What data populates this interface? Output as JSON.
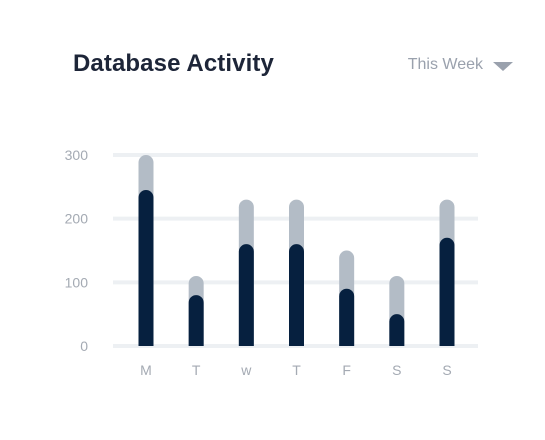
{
  "header": {
    "title": "Database Activity",
    "period_label": "This Week",
    "period_icon": "caret-down-icon"
  },
  "colors": {
    "primary": "#06203f",
    "secondary": "#b3bcc6",
    "grid": "#edf0f3",
    "tick_text": "#a4aab3",
    "title_text": "#1d2538"
  },
  "chart_data": {
    "type": "bar",
    "stacked": "overlay",
    "title": "Database Activity",
    "xlabel": "",
    "ylabel": "",
    "categories": [
      "M",
      "T",
      "w",
      "T",
      "F",
      "S",
      "S"
    ],
    "yticks": [
      0,
      100,
      200,
      300
    ],
    "ylim": [
      0,
      300
    ],
    "grid": true,
    "legend": "none",
    "series": [
      {
        "values": [
          300,
          110,
          230,
          230,
          150,
          110,
          230
        ],
        "color": "#b3bcc6"
      },
      {
        "values": [
          245,
          80,
          160,
          160,
          90,
          50,
          170
        ],
        "color": "#06203f"
      }
    ]
  }
}
